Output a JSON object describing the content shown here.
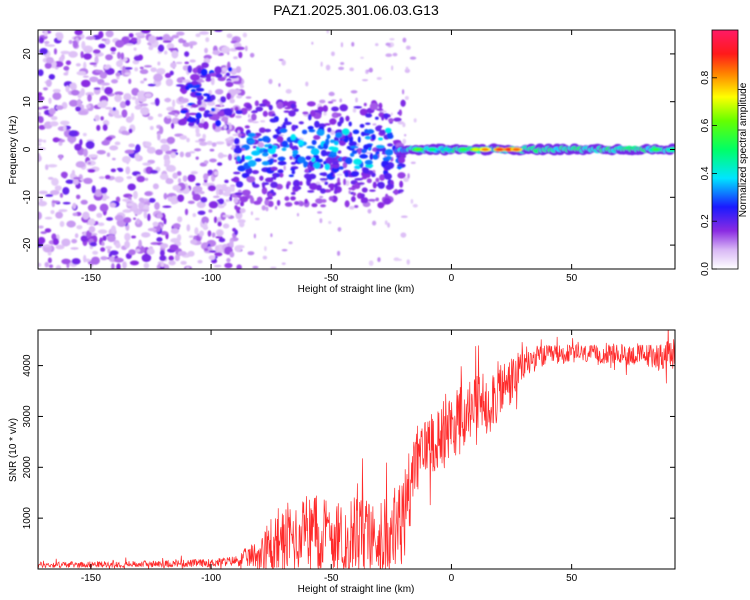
{
  "title": "PAZ1.2025.301.06.03.G13",
  "chart_data": [
    {
      "type": "heatmap",
      "xlabel": "Height of straight line (km)",
      "ylabel": "Frequency (Hz)",
      "xlim": [
        -172,
        93
      ],
      "ylim": [
        -25,
        25
      ],
      "xticks": [
        -150,
        -100,
        -50,
        0,
        50
      ],
      "yticks": [
        -20,
        -10,
        0,
        10,
        20
      ],
      "xtick_labels": [
        "-150",
        "-100",
        "-50",
        "0",
        "50"
      ],
      "ytick_labels": [
        "-20",
        "-10",
        "0",
        "10",
        "20"
      ],
      "colorbar": {
        "label": "Normalized spectral amplitude",
        "range": [
          0,
          1
        ],
        "ticks": [
          0.0,
          0.2,
          0.4,
          0.6,
          0.8
        ],
        "tick_labels": [
          "0.0",
          "0.2",
          "0.4",
          "0.6",
          "0.8"
        ],
        "colormap": "rainbow (white-purple-blue-cyan-green-yellow-red-magenta)"
      },
      "features": [
        {
          "desc": "scattered weak noise",
          "x_range": [
            -172,
            -90
          ],
          "freq_range": [
            -25,
            25
          ],
          "amplitude": 0.1
        },
        {
          "desc": "patchy signal",
          "x_range": [
            -90,
            -20
          ],
          "freq_range": [
            -15,
            10
          ],
          "amplitude": 0.25
        },
        {
          "desc": "focused line",
          "x_range": [
            -20,
            93
          ],
          "freq_center": 0,
          "freq_halfwidth": 1.5,
          "amplitude": 0.5
        },
        {
          "desc": "peak",
          "x_range": [
            10,
            30
          ],
          "freq_center": 0,
          "amplitude": 0.85
        }
      ]
    },
    {
      "type": "line",
      "xlabel": "Height of straight line (km)",
      "ylabel": "SNR (10 * v/v)",
      "xlim": [
        -172,
        93
      ],
      "ylim": [
        0,
        4700
      ],
      "xticks": [
        -150,
        -100,
        -50,
        0,
        50
      ],
      "yticks": [
        1000,
        2000,
        3000,
        4000
      ],
      "xtick_labels": [
        "-150",
        "-100",
        "-50",
        "0",
        "50"
      ],
      "ytick_labels": [
        "1000",
        "2000",
        "3000",
        "4000"
      ],
      "line_color": "#ff2a2a",
      "series": [
        {
          "name": "SNR",
          "x": [
            -172,
            -150,
            -120,
            -100,
            -90,
            -80,
            -75,
            -70,
            -65,
            -60,
            -55,
            -50,
            -45,
            -40,
            -35,
            -30,
            -25,
            -20,
            -18,
            -15,
            -12,
            -10,
            -5,
            0,
            5,
            10,
            15,
            20,
            25,
            30,
            35,
            40,
            50,
            60,
            70,
            80,
            93
          ],
          "base": [
            80,
            90,
            100,
            120,
            160,
            300,
            500,
            600,
            620,
            650,
            700,
            650,
            620,
            700,
            650,
            600,
            700,
            900,
            1500,
            2100,
            2300,
            2500,
            2600,
            2800,
            3000,
            3200,
            3300,
            3500,
            3700,
            4000,
            4150,
            4200,
            4230,
            4220,
            4220,
            4200,
            4200
          ],
          "noise": [
            60,
            60,
            70,
            80,
            100,
            300,
            600,
            700,
            700,
            700,
            800,
            700,
            700,
            800,
            700,
            700,
            800,
            1000,
            800,
            700,
            600,
            600,
            700,
            700,
            700,
            600,
            700,
            600,
            500,
            300,
            250,
            200,
            180,
            180,
            200,
            220,
            300
          ]
        }
      ]
    }
  ]
}
